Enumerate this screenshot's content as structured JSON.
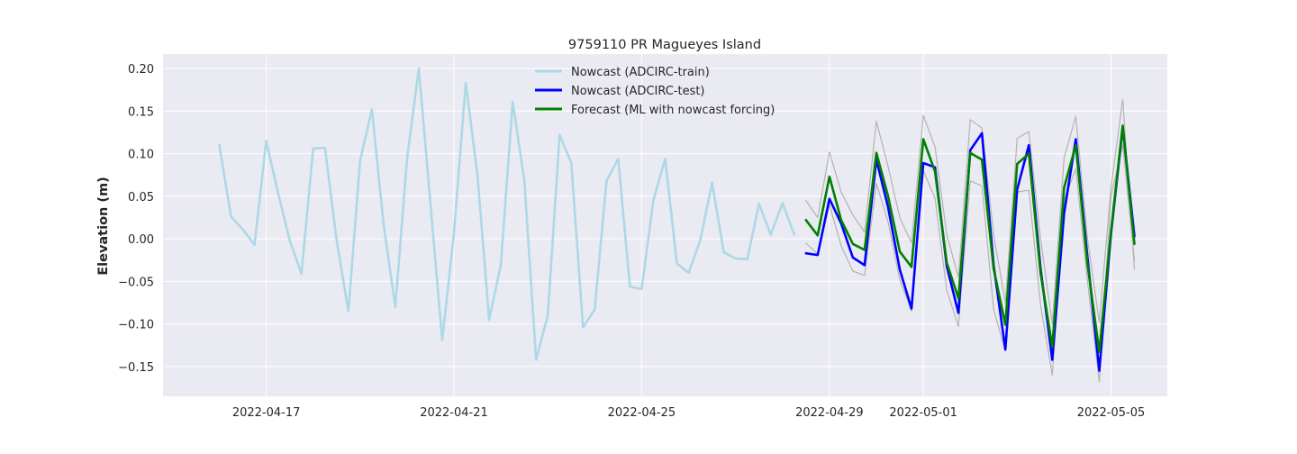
{
  "chart_data": {
    "type": "line",
    "title": "9759110 PR Magueyes Island",
    "xlabel": "",
    "ylabel": "Elevation (m)",
    "x_ticks": [
      "2022-04-17",
      "2022-04-21",
      "2022-04-25",
      "2022-04-29",
      "2022-05-01",
      "2022-05-05"
    ],
    "x_tick_days": [
      2,
      6,
      10,
      14,
      16,
      20
    ],
    "xlim_days": [
      -0.2,
      21.2
    ],
    "y_ticks": [
      "0.20",
      "0.15",
      "0.10",
      "0.05",
      "0.00",
      "−0.05",
      "−0.10",
      "−0.15"
    ],
    "y_tick_values": [
      0.2,
      0.15,
      0.1,
      0.05,
      0.0,
      -0.05,
      -0.1,
      -0.15
    ],
    "ylim": [
      -0.185,
      0.217
    ],
    "grid": true,
    "legend_position": "top-center",
    "colors": {
      "background": "#eaeaf2",
      "grid": "#ffffff",
      "train": "#add8e6",
      "test": "#0000ff",
      "forecast": "#008000",
      "ensemble": "#b3b3b3"
    },
    "series": [
      {
        "name": "Nowcast (ADCIRC-train)",
        "color": "#add8e6",
        "x_start_day": 1.0,
        "x_step_day": 0.25,
        "values": [
          0.11,
          0.026,
          0.011,
          -0.007,
          0.115,
          0.054,
          -0.002,
          -0.041,
          0.106,
          0.107,
          -0.002,
          -0.085,
          0.092,
          0.152,
          0.017,
          -0.08,
          0.094,
          0.2,
          0.04,
          -0.119,
          0.007,
          0.183,
          0.075,
          -0.095,
          -0.03,
          0.161,
          0.068,
          -0.142,
          -0.09,
          0.122,
          0.089,
          -0.104,
          -0.083,
          0.068,
          0.094,
          -0.056,
          -0.059,
          0.046,
          0.094,
          -0.029,
          -0.04,
          -0.001,
          0.066,
          -0.016,
          -0.023,
          -0.024,
          0.041,
          0.005,
          0.042,
          0.005
        ]
      },
      {
        "name": "Nowcast (ADCIRC-test)",
        "color": "#0000ff",
        "x_start_day": 13.5,
        "x_step_day": 0.25,
        "values": [
          -0.017,
          -0.019,
          0.047,
          0.018,
          -0.022,
          -0.031,
          0.093,
          0.037,
          -0.036,
          -0.082,
          0.089,
          0.084,
          -0.032,
          -0.087,
          0.104,
          0.124,
          -0.031,
          -0.13,
          0.058,
          0.11,
          -0.035,
          -0.142,
          0.03,
          0.117,
          -0.022,
          -0.155,
          0.006,
          0.131,
          0.003
        ]
      },
      {
        "name": "Forecast (ML with nowcast forcing)",
        "color": "#008000",
        "x_start_day": 13.5,
        "x_step_day": 0.25,
        "values": [
          0.022,
          0.004,
          0.073,
          0.022,
          -0.006,
          -0.013,
          0.101,
          0.05,
          -0.015,
          -0.033,
          0.117,
          0.079,
          -0.028,
          -0.07,
          0.101,
          0.093,
          -0.035,
          -0.101,
          0.088,
          0.1,
          -0.04,
          -0.127,
          0.06,
          0.11,
          -0.03,
          -0.133,
          0.009,
          0.133,
          -0.006
        ]
      },
      {
        "color": "#b3b3b3",
        "x_start_day": 13.5,
        "x_step_day": 0.25,
        "values": [
          0.045,
          0.025,
          0.102,
          0.055,
          0.028,
          0.008,
          0.138,
          0.085,
          0.025,
          -0.005,
          0.145,
          0.108,
          0.005,
          -0.045,
          0.14,
          0.13,
          0.005,
          -0.075,
          0.118,
          0.126,
          0.0,
          -0.1,
          0.095,
          0.144,
          0.0,
          -0.098,
          0.06,
          0.164,
          -0.036
        ]
      },
      {
        "color": "#b3b3b3",
        "x_start_day": 13.5,
        "x_step_day": 0.25,
        "values": [
          -0.005,
          -0.018,
          0.04,
          -0.008,
          -0.038,
          -0.043,
          0.065,
          0.02,
          -0.048,
          -0.085,
          0.08,
          0.048,
          -0.06,
          -0.103,
          0.068,
          0.062,
          -0.083,
          -0.132,
          0.055,
          0.057,
          -0.078,
          -0.16,
          0.045,
          0.082,
          -0.05,
          -0.168,
          0.05,
          0.11,
          -0.025
        ]
      }
    ]
  }
}
